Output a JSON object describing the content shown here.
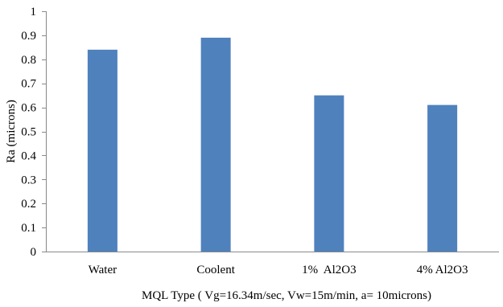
{
  "chart_data": {
    "type": "bar",
    "categories": [
      "Water",
      "Coolent",
      "1%  Al2O3",
      "4% Al2O3"
    ],
    "values": [
      0.84,
      0.89,
      0.65,
      0.61
    ],
    "title": "",
    "xlabel": "MQL Type ( Vg=16.34m/sec, Vw=15m/min, a= 10microns)",
    "ylabel": "Ra (microns)",
    "ylim": [
      0,
      1
    ],
    "yticks": [
      "0",
      "0.1",
      "0.2",
      "0.3",
      "0.4",
      "0.5",
      "0.6",
      "0.7",
      "0.8",
      "0.9",
      "1"
    ],
    "bar_color": "#4f81bd",
    "grid": false,
    "legend": "none"
  }
}
